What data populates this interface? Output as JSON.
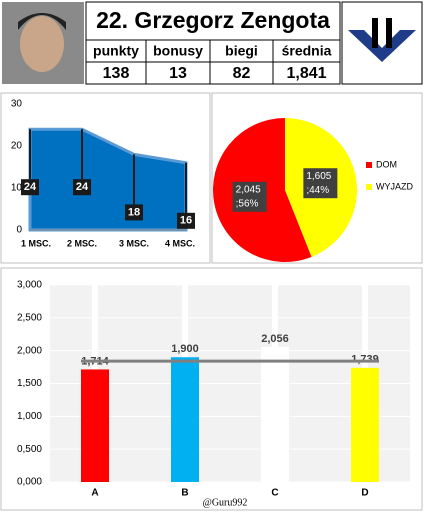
{
  "header": {
    "title": "22. Grzegorz Zengota",
    "columns": [
      "punkty",
      "bonusy",
      "biegi",
      "średnia"
    ],
    "values": [
      "138",
      "13",
      "82",
      "1,841"
    ]
  },
  "chart_data": [
    {
      "type": "area",
      "categories": [
        "1 MSC.",
        "2 MSC.",
        "3 MSC.",
        "4 MSC."
      ],
      "values": [
        24,
        24,
        18,
        16
      ],
      "color": "#0070c0",
      "ylim": [
        0,
        30
      ],
      "yticks": [
        0,
        10,
        20,
        30
      ]
    },
    {
      "type": "pie",
      "series": [
        {
          "name": "DOM",
          "color": "#ff0000"
        },
        {
          "name": "WYJAZD",
          "color": "#ffff00"
        }
      ],
      "values": [
        2045,
        1605
      ],
      "value_labels": [
        [
          "2,045",
          ";56%"
        ],
        [
          "1,605",
          ";44%"
        ]
      ]
    },
    {
      "type": "bar",
      "categories": [
        "A",
        "B",
        "C",
        "D"
      ],
      "values": [
        1714,
        1900,
        2056,
        1739
      ],
      "value_labels": [
        "1,714",
        "1,900",
        "2,056",
        "1,739"
      ],
      "colors": [
        "#ff0000",
        "#00b0f0",
        "#ffffff",
        "#ffff00"
      ],
      "average": 1841,
      "ylim": [
        0,
        3000
      ],
      "yticks": [
        {
          "value": 0,
          "label": "0,000"
        },
        {
          "value": 500,
          "label": "0,500"
        },
        {
          "value": 1000,
          "label": "1,000"
        },
        {
          "value": 1500,
          "label": "1,500"
        },
        {
          "value": 2000,
          "label": "2,000"
        },
        {
          "value": 2500,
          "label": "2,500"
        },
        {
          "value": 3000,
          "label": "3,000"
        }
      ],
      "grid": true,
      "annotation": "@Guru992"
    }
  ]
}
